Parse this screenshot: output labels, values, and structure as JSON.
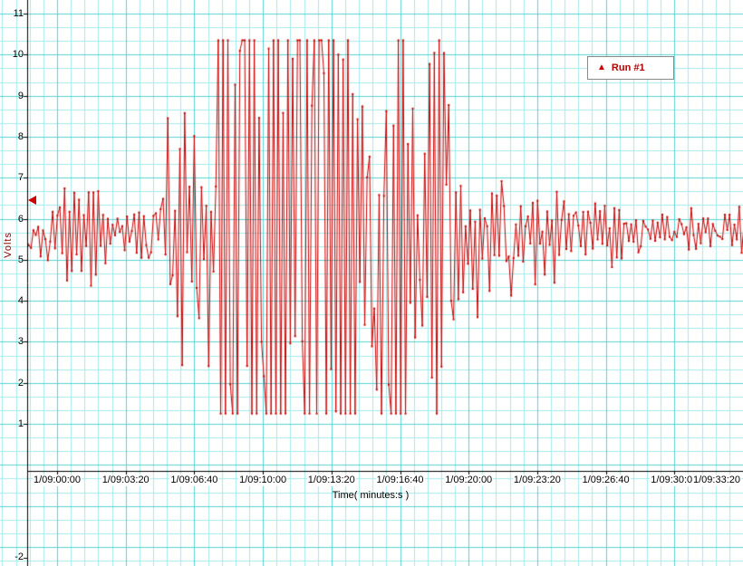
{
  "chart": {
    "second_panel_tick_label": "-2",
    "level_marker": {
      "value": 6.45,
      "color": "#cc0000"
    },
    "colors": {
      "trace": "#cc0000",
      "grid_minor": "#a5e9e9",
      "grid_major": "#5ad2d2",
      "axis": "#000000",
      "background": "#ffffff",
      "legend_border": "#8a8a8a",
      "y_axis_label": "#8b0000"
    }
  },
  "chart_data": {
    "type": "line",
    "title": "",
    "xlabel": "Time( minutes:s )",
    "ylabel": "Volts",
    "legend_position": "top-right",
    "grid": "cyan minor and major gridlines over full canvas",
    "series": [
      {
        "name": "Run #1",
        "color": "#cc0000",
        "marker": "triangle-up"
      }
    ],
    "x_tick_seconds": [
      0,
      200,
      400,
      600,
      800,
      1000,
      1200,
      1400,
      1600,
      1800,
      2000
    ],
    "x_tick_labels": [
      "1/09:00:00",
      "1/09:03:20",
      "1/09:06:40",
      "1/09:10:00",
      "1/09:13:20",
      "1/09:16:40",
      "1/09:20:00",
      "1/09:23:20",
      "1/09:26:40",
      "1/09:30:00",
      "1/09:33:20"
    ],
    "y_ticks": [
      11,
      10,
      9,
      8,
      7,
      6,
      5,
      4,
      3,
      2,
      1
    ],
    "ylim": [
      1,
      11
    ],
    "x_range_seconds": [
      -90,
      2010
    ],
    "baseline_volts": 5.6,
    "clip_top_volts": 10.35,
    "clip_bottom_volts": 1.25,
    "sample_interval_seconds": 7,
    "noise_seed": 73621,
    "amplitude_envelope": [
      [
        -90,
        0.45
      ],
      [
        -60,
        0.5
      ],
      [
        -40,
        0.7
      ],
      [
        -10,
        0.55
      ],
      [
        10,
        0.9
      ],
      [
        28,
        2.3
      ],
      [
        45,
        1.3
      ],
      [
        70,
        1.1
      ],
      [
        95,
        1.7
      ],
      [
        120,
        1.0
      ],
      [
        150,
        0.7
      ],
      [
        200,
        0.55
      ],
      [
        250,
        0.6
      ],
      [
        285,
        0.8
      ],
      [
        305,
        1.2
      ],
      [
        322,
        3.4
      ],
      [
        345,
        2.4
      ],
      [
        362,
        3.7
      ],
      [
        385,
        2.2
      ],
      [
        405,
        2.8
      ],
      [
        430,
        3.3
      ],
      [
        455,
        3.6
      ],
      [
        478,
        9
      ],
      [
        600,
        9
      ],
      [
        720,
        9
      ],
      [
        860,
        9
      ],
      [
        880,
        5
      ],
      [
        930,
        3.4
      ],
      [
        965,
        9
      ],
      [
        1015,
        9
      ],
      [
        1040,
        2.6
      ],
      [
        1075,
        2.2
      ],
      [
        1095,
        9
      ],
      [
        1130,
        9
      ],
      [
        1150,
        2.4
      ],
      [
        1180,
        2.0
      ],
      [
        1230,
        1.8
      ],
      [
        1320,
        1.6
      ],
      [
        1420,
        1.1
      ],
      [
        1550,
        0.9
      ],
      [
        1700,
        0.7
      ],
      [
        1850,
        0.55
      ],
      [
        2010,
        0.5
      ]
    ]
  }
}
